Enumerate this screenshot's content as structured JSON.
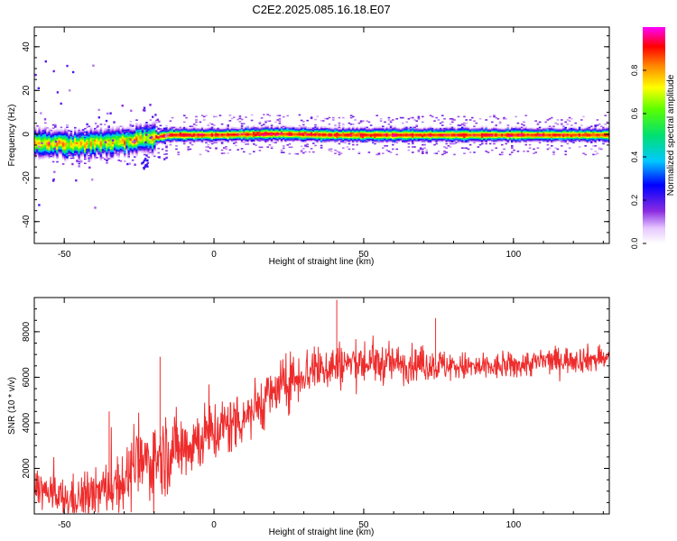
{
  "title": "C2E2.2025.085.16.18.E07",
  "chart_data": [
    {
      "type": "heatmap",
      "xlabel": "Height of straight line (km)",
      "ylabel": "Frequency (Hz)",
      "xlim": [
        -60,
        132
      ],
      "ylim": [
        -50,
        49
      ],
      "xticks": [
        -50,
        0,
        50,
        100
      ],
      "yticks": [
        -40,
        -20,
        0,
        20,
        40
      ],
      "grid": false,
      "colorbar": {
        "label": "Normalized spectral amplitude",
        "range": [
          0,
          1
        ],
        "ticks": [
          "0.0",
          "0.2",
          "0.4",
          "0.6",
          "0.8"
        ]
      },
      "features": {
        "main_band_center_hz": [
          [
            -60,
            -4
          ],
          [
            -45,
            -4
          ],
          [
            -30,
            -3
          ],
          [
            -22,
            -1.5
          ],
          [
            -15,
            0
          ],
          [
            0,
            0
          ],
          [
            20,
            0.5
          ],
          [
            40,
            0
          ],
          [
            60,
            0
          ],
          [
            80,
            0
          ],
          [
            100,
            0
          ],
          [
            132,
            0
          ]
        ],
        "notes": "Strong narrow line near 0 Hz; wider, noisier band below -20 km with outliers up to 29 Hz and down to -44 Hz"
      }
    },
    {
      "type": "line",
      "xlabel": "Height of straight line (km)",
      "ylabel": "SNR (10 * v/v)",
      "xlim": [
        -60,
        132
      ],
      "ylim": [
        0,
        9500
      ],
      "xticks": [
        -50,
        0,
        50,
        100
      ],
      "yticks": [
        2000,
        4000,
        6000,
        8000
      ],
      "grid": false,
      "series_color": "#ee2c2c",
      "trend": {
        "x": [
          -60,
          -55,
          -50,
          -45,
          -40,
          -35,
          -30,
          -25,
          -20,
          -15,
          -10,
          -5,
          0,
          5,
          10,
          15,
          20,
          25,
          30,
          35,
          40,
          45,
          50,
          60,
          70,
          80,
          90,
          100,
          110,
          120,
          132
        ],
        "y": [
          1400,
          800,
          600,
          700,
          800,
          1200,
          1500,
          2100,
          2400,
          2700,
          3000,
          3300,
          3600,
          3900,
          4300,
          4800,
          5300,
          5800,
          6200,
          6400,
          6500,
          6600,
          6600,
          6600,
          6550,
          6500,
          6400,
          6500,
          6700,
          6800,
          6800
        ]
      },
      "spread": {
        "x": [
          -60,
          -40,
          -20,
          0,
          20,
          40,
          60,
          90,
          132
        ],
        "y": [
          700,
          900,
          1500,
          1200,
          1000,
          900,
          700,
          500,
          500
        ]
      },
      "peaks": [
        {
          "x": 41,
          "y": 9400
        },
        {
          "x": 74,
          "y": 8600
        },
        {
          "x": -18,
          "y": 6900
        },
        {
          "x": -35,
          "y": 4500
        },
        {
          "x": -60,
          "y": 2400
        }
      ]
    }
  ]
}
